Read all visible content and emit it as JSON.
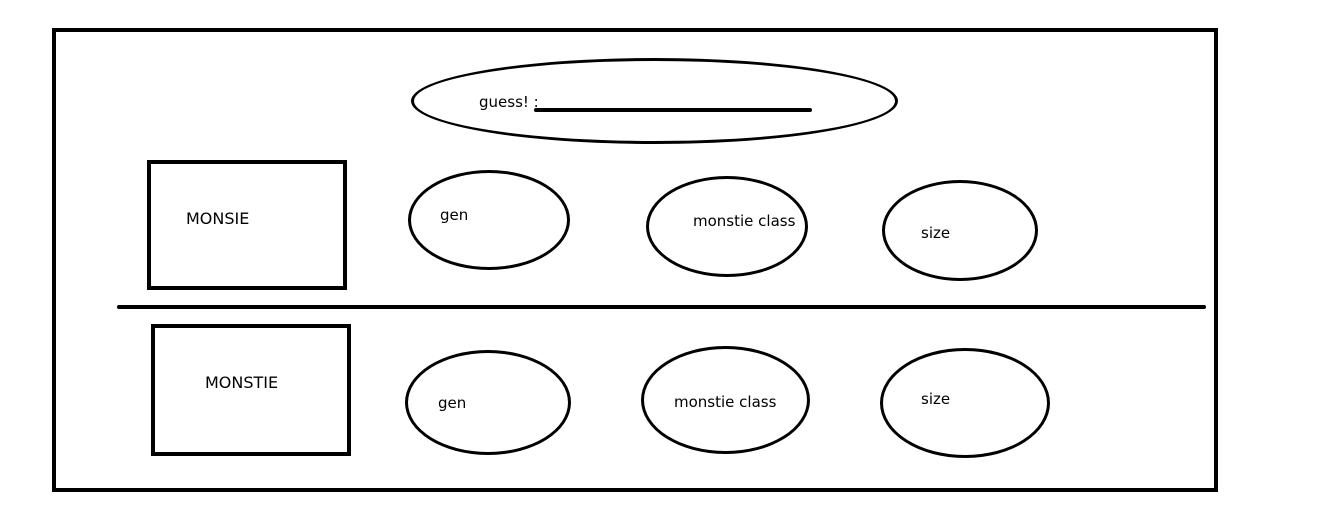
{
  "guess": {
    "label": "guess! :"
  },
  "row1": {
    "name": "MONSIE",
    "gen": "gen",
    "class": "monstie class",
    "size": "size"
  },
  "row2": {
    "name": "MONSTIE",
    "gen": "gen",
    "class": "monstie class",
    "size": "size"
  }
}
